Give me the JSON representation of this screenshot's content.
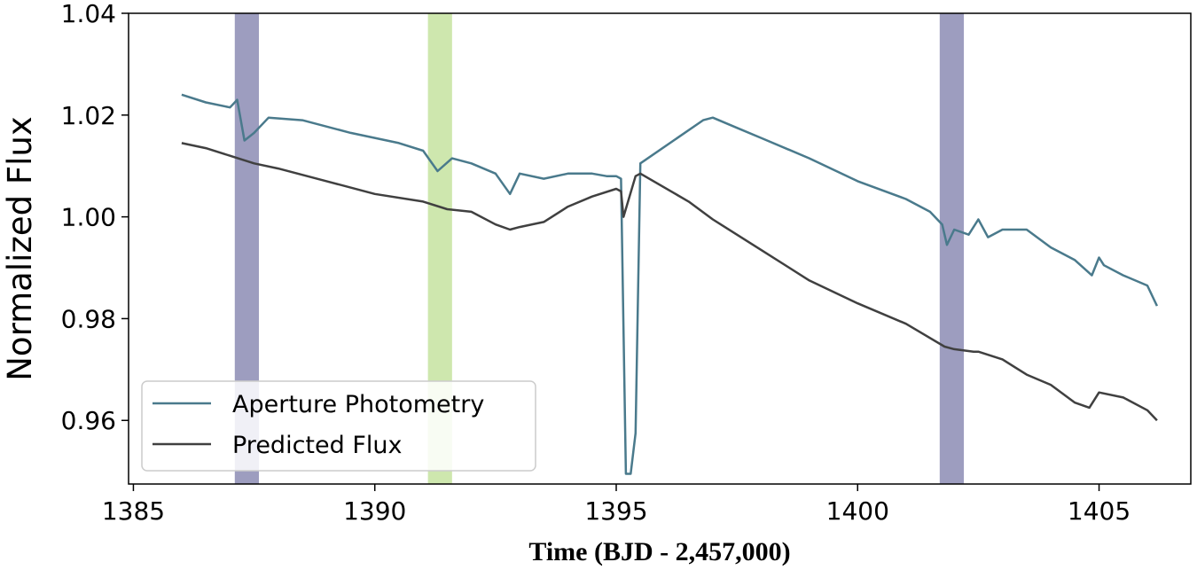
{
  "chart_data": {
    "type": "line",
    "xlabel": "Time (BJD - 2,457,000)",
    "ylabel": "Normalized Flux",
    "xlim": [
      1384.9,
      1406.9
    ],
    "ylim": [
      0.9475,
      1.04
    ],
    "x_ticks": [
      1385,
      1390,
      1395,
      1400,
      1405
    ],
    "x_tick_labels": [
      "1385",
      "1390",
      "1395",
      "1400",
      "1405"
    ],
    "y_ticks": [
      0.96,
      0.98,
      1.0,
      1.02,
      1.04
    ],
    "y_tick_labels": [
      "0.96",
      "0.98",
      "1.00",
      "1.02",
      "1.04"
    ],
    "grid": false,
    "legend_position": "lower-left",
    "bands": [
      {
        "x_start": 1387.1,
        "x_end": 1387.6,
        "color": "#8c8cb4"
      },
      {
        "x_start": 1391.1,
        "x_end": 1391.6,
        "color": "#c6e3a0"
      },
      {
        "x_start": 1401.7,
        "x_end": 1402.2,
        "color": "#8c8cb4"
      }
    ],
    "series": [
      {
        "name": "Aperture Photometry",
        "color": "#4a7a8c",
        "x": [
          1386.0,
          1386.5,
          1387.0,
          1387.15,
          1387.3,
          1387.5,
          1387.8,
          1388.5,
          1389.5,
          1390.5,
          1391.0,
          1391.3,
          1391.6,
          1392.0,
          1392.5,
          1392.8,
          1393.0,
          1393.5,
          1394.0,
          1394.5,
          1394.8,
          1395.0,
          1395.1,
          1395.2,
          1395.3,
          1395.4,
          1395.5,
          1396.8,
          1397.0,
          1397.5,
          1398.0,
          1399.0,
          1400.0,
          1401.0,
          1401.5,
          1401.75,
          1401.85,
          1402.0,
          1402.3,
          1402.5,
          1402.7,
          1403.0,
          1403.5,
          1404.0,
          1404.5,
          1404.85,
          1405.0,
          1405.1,
          1405.5,
          1406.0,
          1406.2
        ],
        "y": [
          1.024,
          1.0225,
          1.0215,
          1.023,
          1.015,
          1.0165,
          1.0195,
          1.019,
          1.0165,
          1.0145,
          1.013,
          1.009,
          1.0115,
          1.0105,
          1.0085,
          1.0045,
          1.0085,
          1.0075,
          1.0085,
          1.0085,
          1.008,
          1.008,
          1.0075,
          0.9495,
          0.9495,
          0.9575,
          1.0105,
          1.019,
          1.0195,
          1.0175,
          1.0155,
          1.0115,
          1.007,
          1.0035,
          1.001,
          0.9985,
          0.9945,
          0.9975,
          0.9965,
          0.9995,
          0.996,
          0.9975,
          0.9975,
          0.994,
          0.9915,
          0.9885,
          0.992,
          0.9905,
          0.9885,
          0.9865,
          0.9825
        ]
      },
      {
        "name": "Predicted Flux",
        "color": "#404040",
        "x": [
          1386.0,
          1386.5,
          1387.0,
          1387.5,
          1388.0,
          1389.0,
          1390.0,
          1391.0,
          1391.5,
          1392.0,
          1392.5,
          1392.8,
          1393.0,
          1393.5,
          1394.0,
          1394.5,
          1395.0,
          1395.1,
          1395.15,
          1395.4,
          1395.5,
          1396.5,
          1397.0,
          1398.0,
          1399.0,
          1400.0,
          1401.0,
          1401.8,
          1402.0,
          1402.4,
          1402.5,
          1403.0,
          1403.5,
          1404.0,
          1404.5,
          1404.8,
          1405.0,
          1405.5,
          1406.0,
          1406.2
        ],
        "y": [
          1.0145,
          1.0135,
          1.012,
          1.0105,
          1.0095,
          1.007,
          1.0045,
          1.003,
          1.0015,
          1.001,
          0.9985,
          0.9975,
          0.998,
          0.999,
          1.002,
          1.004,
          1.0055,
          1.005,
          1.0,
          1.008,
          1.0085,
          1.003,
          0.9995,
          0.9935,
          0.9875,
          0.983,
          0.979,
          0.9745,
          0.974,
          0.9735,
          0.9735,
          0.972,
          0.969,
          0.967,
          0.9635,
          0.9625,
          0.9655,
          0.9645,
          0.962,
          0.96
        ]
      }
    ]
  }
}
